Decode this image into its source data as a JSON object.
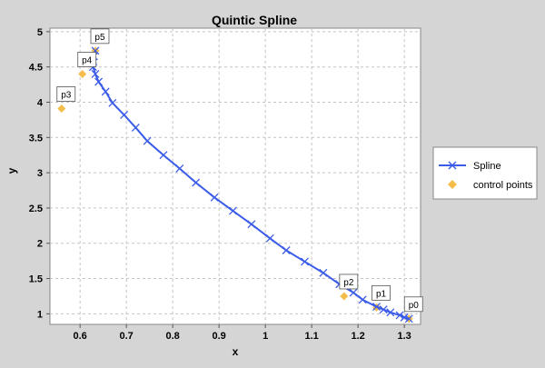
{
  "chart_data": {
    "type": "scatter",
    "title": "Quintic Spline",
    "xlabel": "x",
    "ylabel": "y",
    "xlim": [
      0.535,
      1.335
    ],
    "ylim": [
      0.85,
      5.05
    ],
    "x_ticks": [
      0.6,
      0.7,
      0.8,
      0.9,
      1.0,
      1.1,
      1.2,
      1.3
    ],
    "x_tick_labels": [
      "0.6",
      "0.7",
      "0.8",
      "0.9",
      "1",
      "1.1",
      "1.2",
      "1.3"
    ],
    "y_ticks": [
      1,
      1.5,
      2,
      2.5,
      3,
      3.5,
      4,
      4.5,
      5
    ],
    "y_tick_labels": [
      "1",
      "1.5",
      "2",
      "2.5",
      "3",
      "3.5",
      "4",
      "4.5",
      "5"
    ],
    "grid": true,
    "legend": {
      "position": "right",
      "entries": [
        "Spline",
        "control points"
      ]
    },
    "series": [
      {
        "name": "Spline",
        "type": "line",
        "color": "#3b5ce8",
        "marker": "x",
        "points": [
          [
            1.31,
            0.93
          ],
          [
            1.3,
            0.95
          ],
          [
            1.29,
            0.98
          ],
          [
            1.27,
            1.02
          ],
          [
            1.255,
            1.06
          ],
          [
            1.24,
            1.1
          ],
          [
            1.21,
            1.2
          ],
          [
            1.19,
            1.3
          ],
          [
            1.16,
            1.42
          ],
          [
            1.125,
            1.58
          ],
          [
            1.085,
            1.74
          ],
          [
            1.045,
            1.9
          ],
          [
            1.01,
            2.07
          ],
          [
            0.97,
            2.27
          ],
          [
            0.93,
            2.46
          ],
          [
            0.89,
            2.65
          ],
          [
            0.85,
            2.86
          ],
          [
            0.815,
            3.06
          ],
          [
            0.78,
            3.25
          ],
          [
            0.745,
            3.45
          ],
          [
            0.72,
            3.64
          ],
          [
            0.695,
            3.82
          ],
          [
            0.67,
            3.99
          ],
          [
            0.655,
            4.15
          ],
          [
            0.64,
            4.29
          ],
          [
            0.633,
            4.4
          ],
          [
            0.628,
            4.5
          ],
          [
            0.628,
            4.57
          ],
          [
            0.63,
            4.65
          ],
          [
            0.633,
            4.73
          ]
        ]
      },
      {
        "name": "control points",
        "type": "scatter",
        "color": "#f5bd4a",
        "marker": "diamond",
        "points": [
          [
            1.31,
            0.93
          ],
          [
            1.24,
            1.09
          ],
          [
            1.17,
            1.25
          ],
          [
            0.56,
            3.91
          ],
          [
            0.605,
            4.4
          ],
          [
            0.633,
            4.73
          ]
        ],
        "labels": [
          "p0",
          "p1",
          "p2",
          "p3",
          "p4",
          "p5"
        ]
      }
    ]
  }
}
